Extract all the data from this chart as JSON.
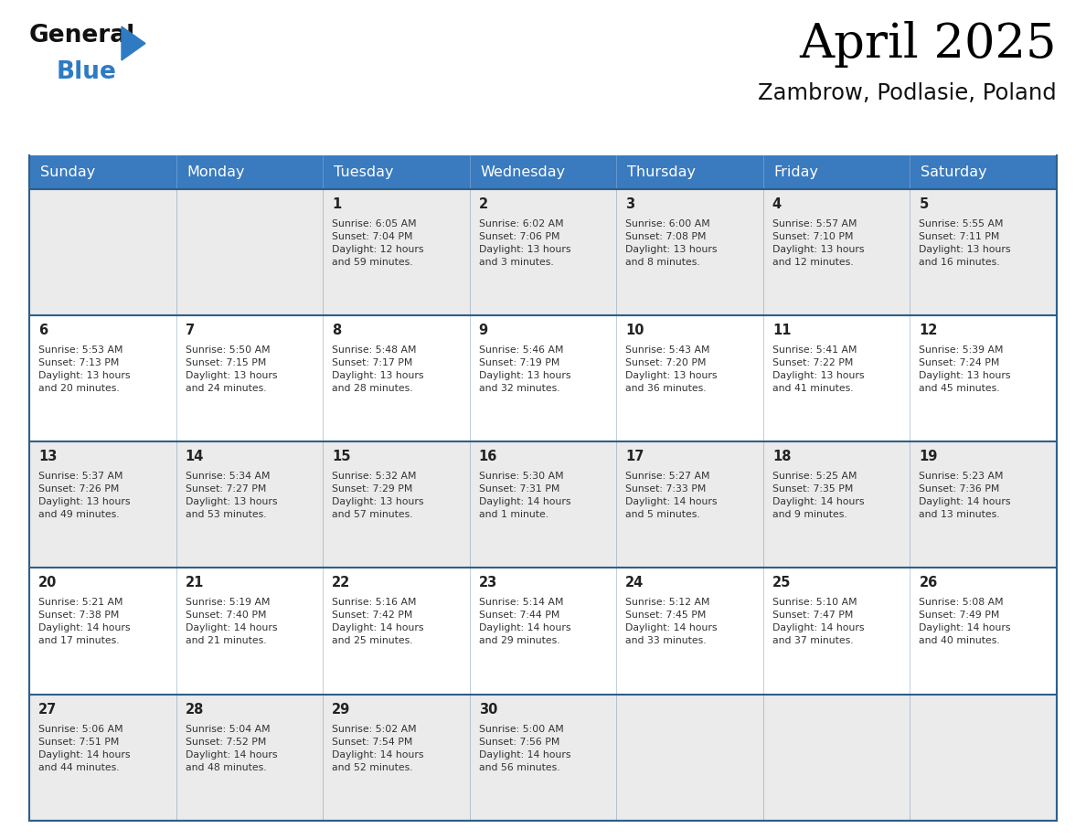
{
  "title": "April 2025",
  "subtitle": "Zambrow, Podlasie, Poland",
  "header_bg_color": "#3a7abf",
  "header_text_color": "#ffffff",
  "header_days": [
    "Sunday",
    "Monday",
    "Tuesday",
    "Wednesday",
    "Thursday",
    "Friday",
    "Saturday"
  ],
  "row_bg_odd": "#ebebeb",
  "row_bg_even": "#ffffff",
  "separator_color": "#2e5f8a",
  "day_number_color": "#222222",
  "day_text_color": "#333333",
  "logo_general_color": "#111111",
  "logo_blue_color": "#2e7bc4",
  "weeks": [
    {
      "days": [
        {
          "date": "",
          "info": ""
        },
        {
          "date": "",
          "info": ""
        },
        {
          "date": "1",
          "info": "Sunrise: 6:05 AM\nSunset: 7:04 PM\nDaylight: 12 hours\nand 59 minutes."
        },
        {
          "date": "2",
          "info": "Sunrise: 6:02 AM\nSunset: 7:06 PM\nDaylight: 13 hours\nand 3 minutes."
        },
        {
          "date": "3",
          "info": "Sunrise: 6:00 AM\nSunset: 7:08 PM\nDaylight: 13 hours\nand 8 minutes."
        },
        {
          "date": "4",
          "info": "Sunrise: 5:57 AM\nSunset: 7:10 PM\nDaylight: 13 hours\nand 12 minutes."
        },
        {
          "date": "5",
          "info": "Sunrise: 5:55 AM\nSunset: 7:11 PM\nDaylight: 13 hours\nand 16 minutes."
        }
      ]
    },
    {
      "days": [
        {
          "date": "6",
          "info": "Sunrise: 5:53 AM\nSunset: 7:13 PM\nDaylight: 13 hours\nand 20 minutes."
        },
        {
          "date": "7",
          "info": "Sunrise: 5:50 AM\nSunset: 7:15 PM\nDaylight: 13 hours\nand 24 minutes."
        },
        {
          "date": "8",
          "info": "Sunrise: 5:48 AM\nSunset: 7:17 PM\nDaylight: 13 hours\nand 28 minutes."
        },
        {
          "date": "9",
          "info": "Sunrise: 5:46 AM\nSunset: 7:19 PM\nDaylight: 13 hours\nand 32 minutes."
        },
        {
          "date": "10",
          "info": "Sunrise: 5:43 AM\nSunset: 7:20 PM\nDaylight: 13 hours\nand 36 minutes."
        },
        {
          "date": "11",
          "info": "Sunrise: 5:41 AM\nSunset: 7:22 PM\nDaylight: 13 hours\nand 41 minutes."
        },
        {
          "date": "12",
          "info": "Sunrise: 5:39 AM\nSunset: 7:24 PM\nDaylight: 13 hours\nand 45 minutes."
        }
      ]
    },
    {
      "days": [
        {
          "date": "13",
          "info": "Sunrise: 5:37 AM\nSunset: 7:26 PM\nDaylight: 13 hours\nand 49 minutes."
        },
        {
          "date": "14",
          "info": "Sunrise: 5:34 AM\nSunset: 7:27 PM\nDaylight: 13 hours\nand 53 minutes."
        },
        {
          "date": "15",
          "info": "Sunrise: 5:32 AM\nSunset: 7:29 PM\nDaylight: 13 hours\nand 57 minutes."
        },
        {
          "date": "16",
          "info": "Sunrise: 5:30 AM\nSunset: 7:31 PM\nDaylight: 14 hours\nand 1 minute."
        },
        {
          "date": "17",
          "info": "Sunrise: 5:27 AM\nSunset: 7:33 PM\nDaylight: 14 hours\nand 5 minutes."
        },
        {
          "date": "18",
          "info": "Sunrise: 5:25 AM\nSunset: 7:35 PM\nDaylight: 14 hours\nand 9 minutes."
        },
        {
          "date": "19",
          "info": "Sunrise: 5:23 AM\nSunset: 7:36 PM\nDaylight: 14 hours\nand 13 minutes."
        }
      ]
    },
    {
      "days": [
        {
          "date": "20",
          "info": "Sunrise: 5:21 AM\nSunset: 7:38 PM\nDaylight: 14 hours\nand 17 minutes."
        },
        {
          "date": "21",
          "info": "Sunrise: 5:19 AM\nSunset: 7:40 PM\nDaylight: 14 hours\nand 21 minutes."
        },
        {
          "date": "22",
          "info": "Sunrise: 5:16 AM\nSunset: 7:42 PM\nDaylight: 14 hours\nand 25 minutes."
        },
        {
          "date": "23",
          "info": "Sunrise: 5:14 AM\nSunset: 7:44 PM\nDaylight: 14 hours\nand 29 minutes."
        },
        {
          "date": "24",
          "info": "Sunrise: 5:12 AM\nSunset: 7:45 PM\nDaylight: 14 hours\nand 33 minutes."
        },
        {
          "date": "25",
          "info": "Sunrise: 5:10 AM\nSunset: 7:47 PM\nDaylight: 14 hours\nand 37 minutes."
        },
        {
          "date": "26",
          "info": "Sunrise: 5:08 AM\nSunset: 7:49 PM\nDaylight: 14 hours\nand 40 minutes."
        }
      ]
    },
    {
      "days": [
        {
          "date": "27",
          "info": "Sunrise: 5:06 AM\nSunset: 7:51 PM\nDaylight: 14 hours\nand 44 minutes."
        },
        {
          "date": "28",
          "info": "Sunrise: 5:04 AM\nSunset: 7:52 PM\nDaylight: 14 hours\nand 48 minutes."
        },
        {
          "date": "29",
          "info": "Sunrise: 5:02 AM\nSunset: 7:54 PM\nDaylight: 14 hours\nand 52 minutes."
        },
        {
          "date": "30",
          "info": "Sunrise: 5:00 AM\nSunset: 7:56 PM\nDaylight: 14 hours\nand 56 minutes."
        },
        {
          "date": "",
          "info": ""
        },
        {
          "date": "",
          "info": ""
        },
        {
          "date": "",
          "info": ""
        }
      ]
    }
  ]
}
